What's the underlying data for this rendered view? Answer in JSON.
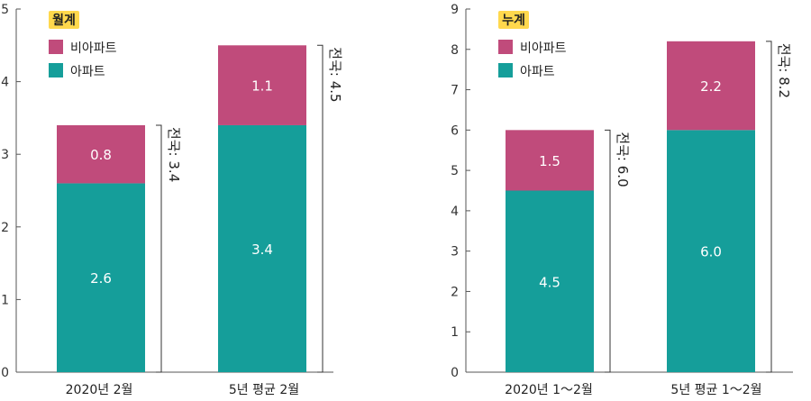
{
  "colors": {
    "non_apartment": "#c04b7b",
    "apartment": "#159e9a",
    "badge": "#ffd84d"
  },
  "chart_data": [
    {
      "type": "bar",
      "stacked": true,
      "title": "월계",
      "categories": [
        "2020년 2월",
        "5년 평균 2월"
      ],
      "series": [
        {
          "name": "아파트",
          "values": [
            2.6,
            3.4
          ]
        },
        {
          "name": "비아파트",
          "values": [
            0.8,
            1.1
          ]
        }
      ],
      "segment_labels": [
        [
          "2.6",
          "0.8"
        ],
        [
          "3.4",
          "1.1"
        ]
      ],
      "totals": [
        "전국: 3.4",
        "전국: 4.5"
      ],
      "ylim": [
        0,
        5
      ],
      "yticks": [
        "0",
        "1",
        "2",
        "3",
        "4",
        "5"
      ],
      "legend_position": "top-left"
    },
    {
      "type": "bar",
      "stacked": true,
      "title": "누계",
      "categories": [
        "2020년 1～2월",
        "5년 평균 1～2월"
      ],
      "series": [
        {
          "name": "아파트",
          "values": [
            4.5,
            6.0
          ]
        },
        {
          "name": "비아파트",
          "values": [
            1.5,
            2.2
          ]
        }
      ],
      "segment_labels": [
        [
          "4.5",
          "1.5"
        ],
        [
          "6.0",
          "2.2"
        ]
      ],
      "totals": [
        "전국: 6.0",
        "전국: 8.2"
      ],
      "ylim": [
        0,
        9
      ],
      "yticks": [
        "0",
        "1",
        "2",
        "3",
        "4",
        "5",
        "6",
        "7",
        "8",
        "9"
      ],
      "legend_position": "top-left"
    }
  ]
}
